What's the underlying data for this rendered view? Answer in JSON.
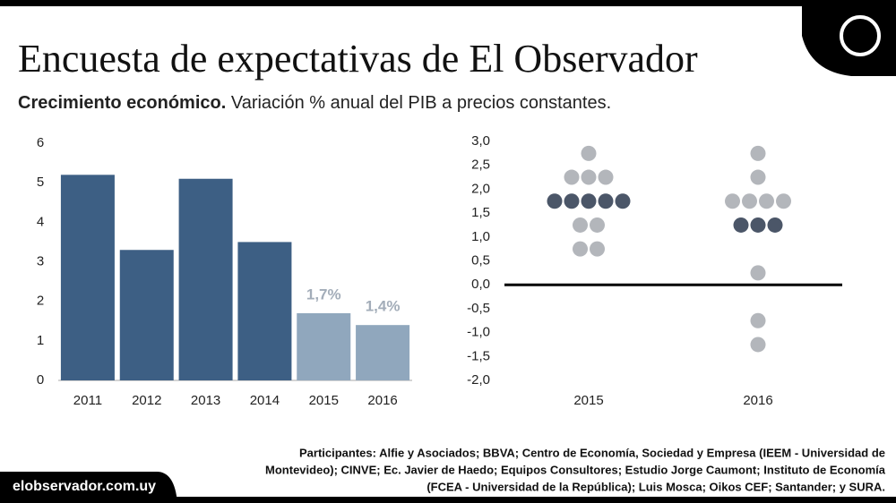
{
  "header": {
    "title": "Encuesta de expectativas de El Observador",
    "subtitle_bold": "Crecimiento económico.",
    "subtitle": "Variación % anual del PIB a precios constantes."
  },
  "chart_data": [
    {
      "type": "bar",
      "categories": [
        "2011",
        "2012",
        "2013",
        "2014",
        "2015",
        "2016"
      ],
      "values": [
        5.2,
        3.3,
        5.1,
        3.5,
        1.7,
        1.4
      ],
      "value_labels": [
        null,
        null,
        null,
        null,
        "1,7%",
        "1,4%"
      ],
      "colors": [
        "#3d5f84",
        "#3d5f84",
        "#3d5f84",
        "#3d5f84",
        "#90a7bd",
        "#90a7bd"
      ],
      "ylim": [
        0,
        6
      ],
      "yticks": [
        0,
        1,
        2,
        3,
        4,
        5,
        6
      ]
    },
    {
      "type": "strip",
      "categories": [
        "2015",
        "2016"
      ],
      "groups": [
        {
          "values": [
            2.75,
            2.25,
            2.25,
            2.25,
            1.75,
            1.75,
            1.75,
            1.75,
            1.75,
            1.25,
            1.25,
            0.75,
            0.75
          ],
          "colors": [
            "#b3b6bb",
            "#b3b6bb",
            "#b3b6bb",
            "#b3b6bb",
            "#4b5668",
            "#4b5668",
            "#4b5668",
            "#4b5668",
            "#4b5668",
            "#b3b6bb",
            "#b3b6bb",
            "#b3b6bb",
            "#b3b6bb"
          ]
        },
        {
          "values": [
            2.75,
            2.25,
            1.75,
            1.75,
            1.75,
            1.75,
            1.25,
            1.25,
            1.25,
            0.25,
            -0.75,
            -1.25
          ],
          "colors": [
            "#b3b6bb",
            "#b3b6bb",
            "#b3b6bb",
            "#b3b6bb",
            "#b3b6bb",
            "#b3b6bb",
            "#4b5668",
            "#4b5668",
            "#4b5668",
            "#b3b6bb",
            "#b3b6bb",
            "#b3b6bb"
          ]
        }
      ],
      "ylim": [
        -2,
        3
      ],
      "yticks": [
        {
          "value": 3,
          "label": "3,0"
        },
        {
          "value": 2.5,
          "label": "2,5"
        },
        {
          "value": 2,
          "label": "2,0"
        },
        {
          "value": 1.5,
          "label": "1,5"
        },
        {
          "value": 1,
          "label": "1,0"
        },
        {
          "value": 0.5,
          "label": "0,5"
        },
        {
          "value": 0,
          "label": "0,0"
        },
        {
          "value": -0.5,
          "label": "-0,5"
        },
        {
          "value": -1,
          "label": "-1,0"
        },
        {
          "value": -1.5,
          "label": "-1,5"
        },
        {
          "value": -2,
          "label": "-2,0"
        }
      ]
    }
  ],
  "footer": {
    "site": "elobservador.com.uy",
    "participants": [
      "Participantes: Alfie y Asociados; BBVA; Centro de Economía, Sociedad y Empresa (IEEM - Universidad de",
      "Montevideo); CINVE; Ec. Javier de Haedo; Equipos Consultores; Estudio Jorge Caumont; Instituto de Economía",
      "(FCEA - Universidad de la República); Luis Mosca; Oikos CEF; Santander; y SURA."
    ]
  }
}
